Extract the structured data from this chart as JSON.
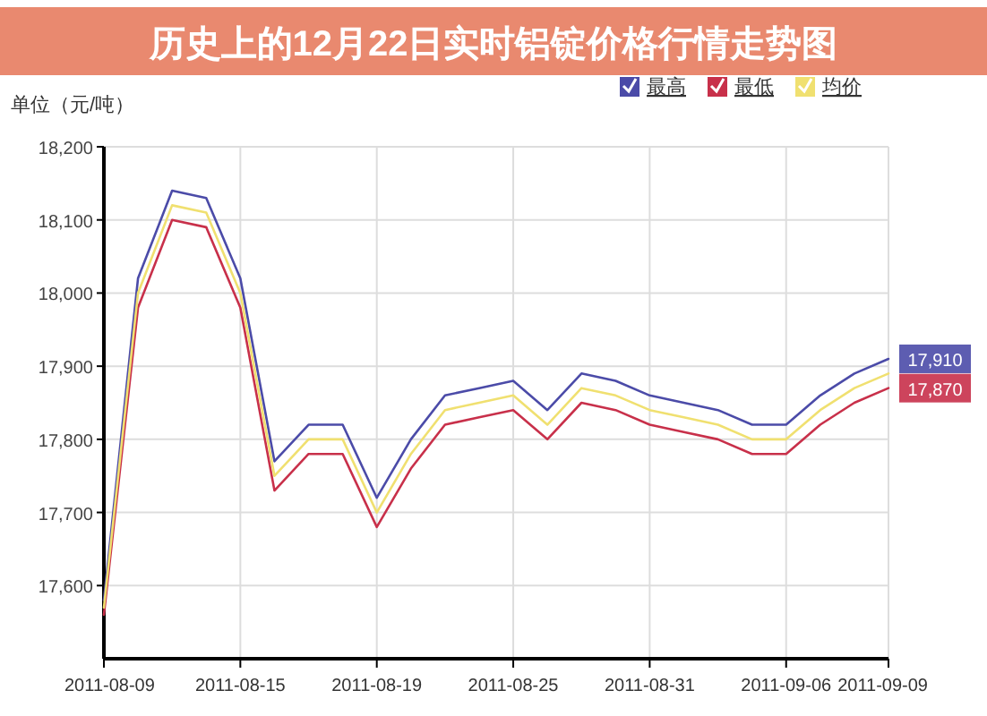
{
  "chart_data": {
    "type": "line",
    "title": "历史上的12月22日实时铝锭价格行情走势图",
    "ylabel": "单位（元/吨）",
    "categories": [
      "2011-08-09",
      null,
      null,
      null,
      "2011-08-15",
      null,
      null,
      null,
      "2011-08-19",
      null,
      null,
      null,
      "2011-08-25",
      null,
      null,
      null,
      "2011-08-31",
      null,
      null,
      null,
      "2011-09-06",
      null,
      null,
      "2011-09-09"
    ],
    "series": [
      {
        "name": "最高",
        "color": "#4b4ba8",
        "values": [
          17580,
          18020,
          18140,
          18130,
          18020,
          17770,
          17820,
          17820,
          17720,
          17800,
          17860,
          17870,
          17880,
          17840,
          17890,
          17880,
          17860,
          17850,
          17840,
          17820,
          17820,
          17860,
          17890,
          17910
        ]
      },
      {
        "name": "最低",
        "color": "#c8304a",
        "values": [
          17560,
          17980,
          18100,
          18090,
          17980,
          17730,
          17780,
          17780,
          17680,
          17760,
          17820,
          17830,
          17840,
          17800,
          17850,
          17840,
          17820,
          17810,
          17800,
          17780,
          17780,
          17820,
          17850,
          17870
        ]
      },
      {
        "name": "均价",
        "color": "#f0e070",
        "values": [
          17570,
          18000,
          18120,
          18110,
          18000,
          17750,
          17800,
          17800,
          17700,
          17780,
          17840,
          17850,
          17860,
          17820,
          17870,
          17860,
          17840,
          17830,
          17820,
          17800,
          17800,
          17840,
          17870,
          17890
        ]
      }
    ],
    "annotations": [
      {
        "text": "17,910",
        "x": "2011-09-09",
        "y": 17910
      },
      {
        "text": "17,870",
        "x": "2011-09-09",
        "y": 17870
      }
    ],
    "ylim": [
      17500,
      18200
    ],
    "yticks": [
      {
        "value": 17600,
        "label": "17,600"
      },
      {
        "value": 17700,
        "label": "17,700"
      },
      {
        "value": 17800,
        "label": "17,800"
      },
      {
        "value": 17900,
        "label": "17,900"
      },
      {
        "value": 18000,
        "label": "18,000"
      },
      {
        "value": 18100,
        "label": "18,100"
      },
      {
        "value": 18200,
        "label": "18,200"
      }
    ],
    "grid": true,
    "legend": "top right",
    "marker": "none",
    "line_style": "solid"
  }
}
